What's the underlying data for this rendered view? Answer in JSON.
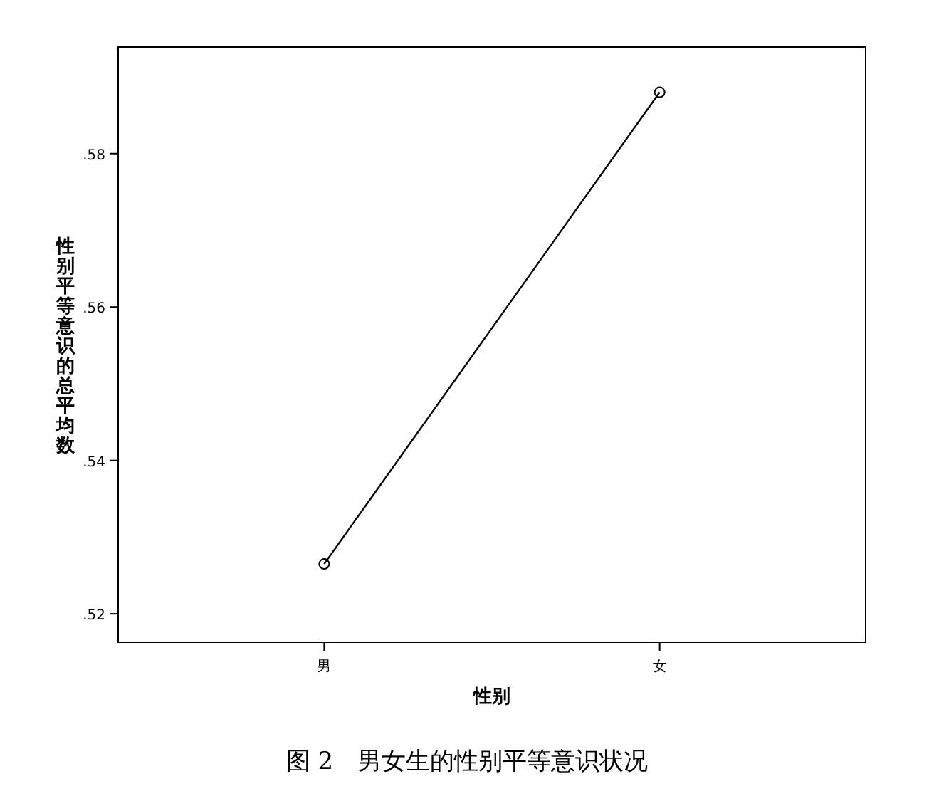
{
  "chart_data": {
    "type": "line",
    "title": "图 2　男女生的性别平等意识状况",
    "xlabel": "性别",
    "ylabel": "性别平等意识的总平均数",
    "categories": [
      "男",
      "女"
    ],
    "series": [
      {
        "color": "#000000",
        "values": [
          0.5265,
          0.588
        ]
      }
    ],
    "ylim": [
      0.5163,
      0.5939
    ],
    "yticks": [
      {
        "value": 0.52,
        "label": ".52"
      },
      {
        "value": 0.54,
        "label": ".54"
      },
      {
        "value": 0.56,
        "label": ".56"
      },
      {
        "value": 0.58,
        "label": ".58"
      }
    ],
    "marker": "circle",
    "line_style": "solid"
  }
}
